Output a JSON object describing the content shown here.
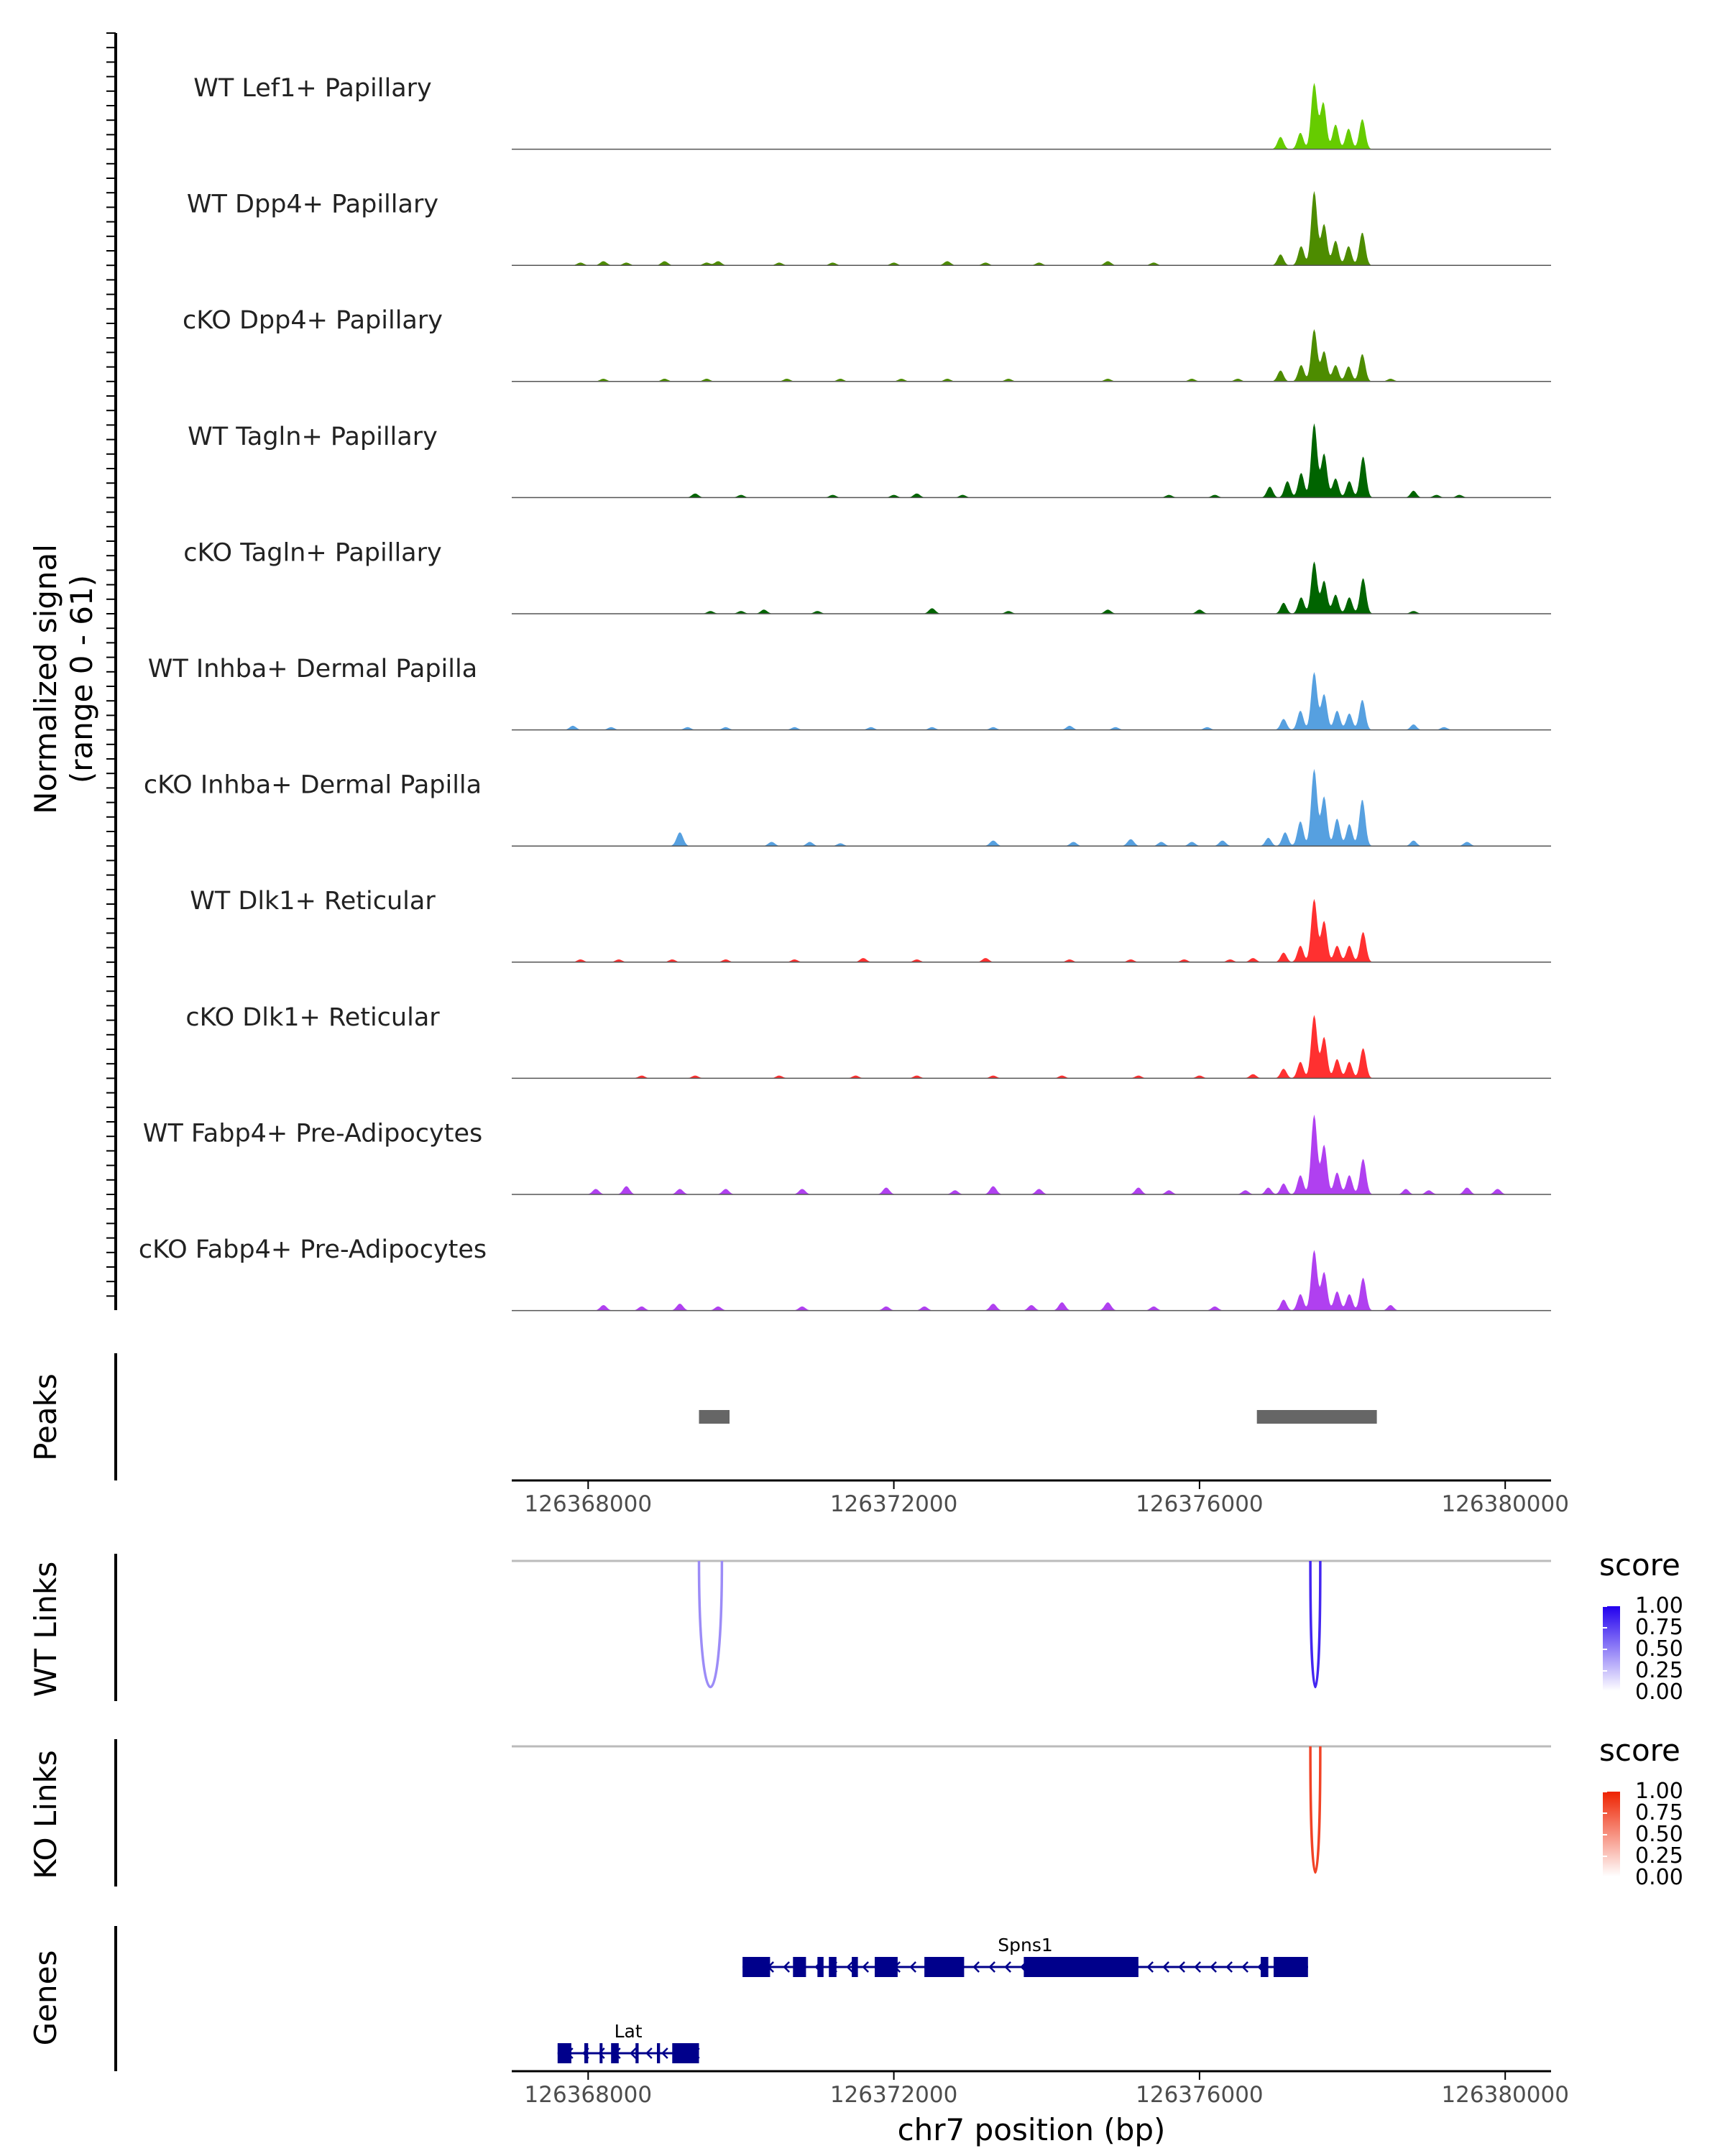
{
  "chart_data": {
    "type": "coverage-track",
    "y_axis_label_line1": "Normalized signal",
    "y_axis_label_line2": "(range 0 - 61)",
    "ylim": [
      0,
      61
    ],
    "xlim": [
      126367000,
      126380600
    ],
    "x_ticks": [
      126368000,
      126372000,
      126376000,
      126380000
    ],
    "x_tick_labels": [
      "126368000",
      "126372000",
      "126376000",
      "126380000"
    ],
    "x_axis_label": "chr7 position (bp)",
    "coverage_tracks": [
      {
        "name": "WT Lef1+ Papillary",
        "color": "#66CC00",
        "peaks": [
          [
            126377500,
            48
          ],
          [
            126377620,
            34
          ],
          [
            126377780,
            18
          ],
          [
            126377950,
            15
          ],
          [
            126378130,
            22
          ],
          [
            126377320,
            12
          ],
          [
            126377060,
            9
          ]
        ],
        "small": []
      },
      {
        "name": "WT Dpp4+ Papillary",
        "color": "#4D8C00",
        "peaks": [
          [
            126377500,
            54
          ],
          [
            126377630,
            30
          ],
          [
            126377780,
            18
          ],
          [
            126377950,
            14
          ],
          [
            126378130,
            24
          ],
          [
            126377330,
            14
          ],
          [
            126377060,
            8
          ]
        ],
        "small": [
          [
            126367900,
            2
          ],
          [
            126368200,
            3
          ],
          [
            126368500,
            2
          ],
          [
            126369000,
            3
          ],
          [
            126369550,
            2
          ],
          [
            126369700,
            3
          ],
          [
            126370500,
            2
          ],
          [
            126371200,
            2
          ],
          [
            126372000,
            2
          ],
          [
            126372700,
            3
          ],
          [
            126373200,
            2
          ],
          [
            126373900,
            2
          ],
          [
            126374800,
            3
          ],
          [
            126375400,
            2
          ]
        ]
      },
      {
        "name": "cKO Dpp4+ Papillary",
        "color": "#4D8C00",
        "peaks": [
          [
            126377500,
            38
          ],
          [
            126377630,
            22
          ],
          [
            126377780,
            12
          ],
          [
            126377950,
            11
          ],
          [
            126378130,
            20
          ],
          [
            126377330,
            12
          ],
          [
            126377060,
            8
          ]
        ],
        "small": [
          [
            126368200,
            2
          ],
          [
            126369000,
            2
          ],
          [
            126369550,
            2
          ],
          [
            126370600,
            2
          ],
          [
            126371300,
            2
          ],
          [
            126372100,
            2
          ],
          [
            126372700,
            2
          ],
          [
            126373500,
            2
          ],
          [
            126374800,
            2
          ],
          [
            126375900,
            2
          ],
          [
            126376500,
            2
          ],
          [
            126378500,
            2
          ]
        ]
      },
      {
        "name": "WT Tagln+ Papillary",
        "color": "#006400",
        "peaks": [
          [
            126377500,
            54
          ],
          [
            126377630,
            32
          ],
          [
            126377780,
            14
          ],
          [
            126377960,
            12
          ],
          [
            126378140,
            30
          ],
          [
            126377330,
            18
          ],
          [
            126377150,
            12
          ],
          [
            126376920,
            8
          ],
          [
            126378800,
            5
          ]
        ],
        "small": [
          [
            126369400,
            3
          ],
          [
            126370000,
            2
          ],
          [
            126371200,
            2
          ],
          [
            126372000,
            2
          ],
          [
            126372300,
            3
          ],
          [
            126372900,
            2
          ],
          [
            126375600,
            2
          ],
          [
            126376200,
            2
          ],
          [
            126379100,
            2
          ],
          [
            126379400,
            2
          ]
        ]
      },
      {
        "name": "cKO Tagln+ Papillary",
        "color": "#006400",
        "peaks": [
          [
            126377500,
            38
          ],
          [
            126377630,
            24
          ],
          [
            126377780,
            14
          ],
          [
            126377960,
            12
          ],
          [
            126378140,
            26
          ],
          [
            126377330,
            12
          ],
          [
            126377100,
            8
          ]
        ],
        "small": [
          [
            126369600,
            2
          ],
          [
            126370000,
            2
          ],
          [
            126370300,
            3
          ],
          [
            126371000,
            2
          ],
          [
            126372500,
            4
          ],
          [
            126373500,
            2
          ],
          [
            126374800,
            3
          ],
          [
            126376000,
            3
          ],
          [
            126378800,
            2
          ]
        ]
      },
      {
        "name": "WT Inhba+ Dermal Papilla",
        "color": "#56A0E0",
        "peaks": [
          [
            126377500,
            42
          ],
          [
            126377630,
            26
          ],
          [
            126377800,
            14
          ],
          [
            126377960,
            12
          ],
          [
            126378130,
            22
          ],
          [
            126377320,
            14
          ],
          [
            126377100,
            8
          ],
          [
            126378800,
            4
          ]
        ],
        "small": [
          [
            126367800,
            3
          ],
          [
            126368300,
            2
          ],
          [
            126369300,
            2
          ],
          [
            126369800,
            2
          ],
          [
            126370700,
            2
          ],
          [
            126371700,
            2
          ],
          [
            126372500,
            2
          ],
          [
            126373300,
            2
          ],
          [
            126374300,
            3
          ],
          [
            126374900,
            2
          ],
          [
            126376100,
            2
          ],
          [
            126379200,
            2
          ]
        ]
      },
      {
        "name": "cKO Inhba+ Dermal Papilla",
        "color": "#56A0E0",
        "peaks": [
          [
            126377500,
            56
          ],
          [
            126377630,
            36
          ],
          [
            126377800,
            20
          ],
          [
            126377960,
            16
          ],
          [
            126378130,
            34
          ],
          [
            126377320,
            18
          ],
          [
            126377120,
            10
          ],
          [
            126376900,
            6
          ],
          [
            126378800,
            4
          ]
        ],
        "small": [
          [
            126369200,
            10
          ],
          [
            126370400,
            3
          ],
          [
            126370900,
            3
          ],
          [
            126371300,
            2
          ],
          [
            126373300,
            4
          ],
          [
            126374350,
            3
          ],
          [
            126375100,
            5
          ],
          [
            126375500,
            3
          ],
          [
            126375900,
            3
          ],
          [
            126376300,
            4
          ],
          [
            126379500,
            3
          ]
        ]
      },
      {
        "name": "WT Dlk1+ Reticular",
        "color": "#FF3030",
        "peaks": [
          [
            126377500,
            46
          ],
          [
            126377630,
            30
          ],
          [
            126377800,
            12
          ],
          [
            126377960,
            12
          ],
          [
            126378140,
            22
          ],
          [
            126377320,
            12
          ],
          [
            126377100,
            7
          ]
        ],
        "small": [
          [
            126367900,
            2
          ],
          [
            126368400,
            2
          ],
          [
            126369100,
            2
          ],
          [
            126369800,
            2
          ],
          [
            126370700,
            2
          ],
          [
            126371600,
            3
          ],
          [
            126372300,
            2
          ],
          [
            126373200,
            3
          ],
          [
            126374300,
            2
          ],
          [
            126375100,
            2
          ],
          [
            126375800,
            2
          ],
          [
            126376400,
            2
          ],
          [
            126376700,
            3
          ]
        ]
      },
      {
        "name": "cKO Dlk1+ Reticular",
        "color": "#FF3030",
        "peaks": [
          [
            126377500,
            46
          ],
          [
            126377630,
            30
          ],
          [
            126377800,
            14
          ],
          [
            126377960,
            12
          ],
          [
            126378140,
            22
          ],
          [
            126377320,
            12
          ],
          [
            126377100,
            7
          ]
        ],
        "small": [
          [
            126368700,
            2
          ],
          [
            126369400,
            2
          ],
          [
            126370500,
            2
          ],
          [
            126371500,
            2
          ],
          [
            126372300,
            2
          ],
          [
            126373300,
            2
          ],
          [
            126374200,
            2
          ],
          [
            126375200,
            2
          ],
          [
            126376000,
            2
          ],
          [
            126376700,
            3
          ]
        ]
      },
      {
        "name": "WT Fabp4+ Pre-Adipocytes",
        "color": "#B040F0",
        "peaks": [
          [
            126377500,
            58
          ],
          [
            126377630,
            36
          ],
          [
            126377800,
            16
          ],
          [
            126377960,
            14
          ],
          [
            126378140,
            26
          ],
          [
            126377320,
            14
          ],
          [
            126377100,
            8
          ],
          [
            126376900,
            5
          ],
          [
            126378700,
            4
          ]
        ],
        "small": [
          [
            126368100,
            4
          ],
          [
            126368500,
            6
          ],
          [
            126369200,
            4
          ],
          [
            126369800,
            4
          ],
          [
            126370800,
            4
          ],
          [
            126371900,
            5
          ],
          [
            126372800,
            3
          ],
          [
            126373300,
            6
          ],
          [
            126373900,
            4
          ],
          [
            126375200,
            5
          ],
          [
            126375600,
            3
          ],
          [
            126376600,
            3
          ],
          [
            126379000,
            3
          ],
          [
            126379500,
            5
          ],
          [
            126379900,
            4
          ]
        ]
      },
      {
        "name": "cKO Fabp4+ Pre-Adipocytes",
        "color": "#B040F0",
        "peaks": [
          [
            126377500,
            44
          ],
          [
            126377630,
            28
          ],
          [
            126377800,
            14
          ],
          [
            126377960,
            12
          ],
          [
            126378140,
            24
          ],
          [
            126377320,
            12
          ],
          [
            126377100,
            8
          ],
          [
            126378500,
            4
          ]
        ],
        "small": [
          [
            126368200,
            4
          ],
          [
            126368700,
            3
          ],
          [
            126369200,
            5
          ],
          [
            126369700,
            3
          ],
          [
            126370800,
            3
          ],
          [
            126371900,
            3
          ],
          [
            126372400,
            3
          ],
          [
            126373300,
            5
          ],
          [
            126373800,
            4
          ],
          [
            126374200,
            6
          ],
          [
            126374800,
            6
          ],
          [
            126375400,
            3
          ],
          [
            126376200,
            3
          ]
        ]
      }
    ],
    "peaks_track": {
      "label": "Peaks",
      "regions": [
        [
          126369450,
          126369850
        ],
        [
          126376750,
          126378320
        ]
      ]
    },
    "links_tracks": [
      {
        "label": "WT Links",
        "legend_title": "score",
        "legend_labels": [
          "1.00",
          "0.75",
          "0.50",
          "0.25",
          "0.00"
        ],
        "low_color": "#FFFFFF",
        "high_color": "#2200EE",
        "links": [
          {
            "start": 126369450,
            "end": 126369750,
            "score": 0.45
          },
          {
            "start": 126377450,
            "end": 126377580,
            "score": 0.85
          }
        ]
      },
      {
        "label": "KO Links",
        "legend_title": "score",
        "legend_labels": [
          "1.00",
          "0.75",
          "0.50",
          "0.25",
          "0.00"
        ],
        "low_color": "#FFFFFF",
        "high_color": "#EE2200",
        "links": [
          {
            "start": 126377450,
            "end": 126377580,
            "score": 0.85
          }
        ]
      }
    ],
    "genes_track": {
      "label": "Genes",
      "genes": [
        {
          "name": "Spns1",
          "start": 126370020,
          "end": 126377420,
          "strand": "-",
          "exons": [
            [
              126370020,
              126370380
            ],
            [
              126370680,
              126370850
            ],
            [
              126371000,
              126371080
            ],
            [
              126371150,
              126371250
            ],
            [
              126371450,
              126371530
            ],
            [
              126371750,
              126372050
            ],
            [
              126372400,
              126372920
            ],
            [
              126373700,
              126375200
            ],
            [
              126376800,
              126376900
            ],
            [
              126376970,
              126377420
            ]
          ]
        },
        {
          "name": "Lat",
          "start": 126367600,
          "end": 126369450,
          "strand": "-",
          "exons": [
            [
              126367600,
              126367780
            ],
            [
              126367950,
              126368000
            ],
            [
              126368150,
              126368180
            ],
            [
              126368300,
              126368400
            ],
            [
              126368620,
              126368660
            ],
            [
              126368900,
              126368940
            ],
            [
              126369100,
              126369450
            ]
          ]
        }
      ]
    }
  }
}
